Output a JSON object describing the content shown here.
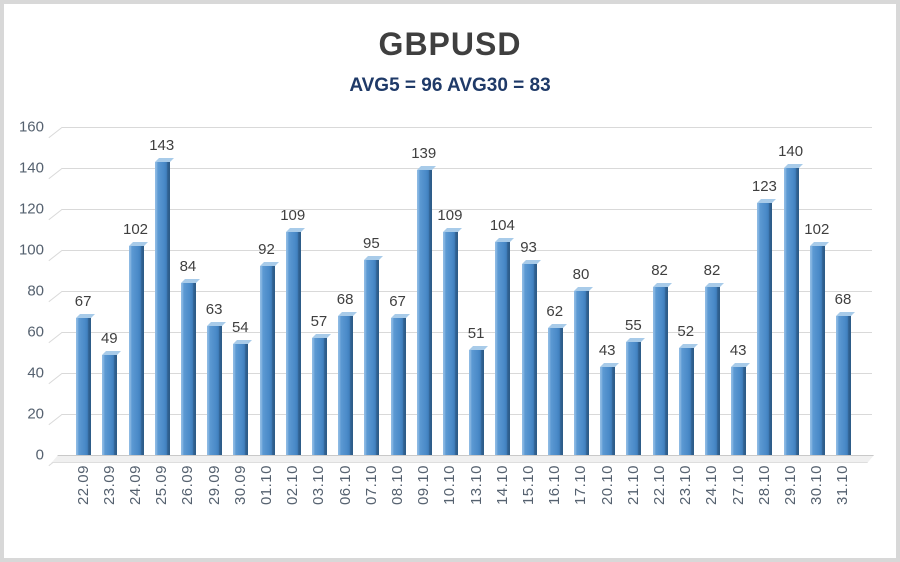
{
  "chart_data": {
    "type": "bar",
    "title": "GBPUSD",
    "subtitle": "AVG5 = 96 AVG30 = 83",
    "categories": [
      "22.09",
      "23.09",
      "24.09",
      "25.09",
      "26.09",
      "29.09",
      "30.09",
      "01.10",
      "02.10",
      "03.10",
      "06.10",
      "07.10",
      "08.10",
      "09.10",
      "10.10",
      "13.10",
      "14.10",
      "15.10",
      "16.10",
      "17.10",
      "20.10",
      "21.10",
      "22.10",
      "23.10",
      "24.10",
      "27.10",
      "28.10",
      "29.10",
      "30.10",
      "31.10"
    ],
    "values": [
      67,
      49,
      102,
      143,
      84,
      63,
      54,
      92,
      109,
      57,
      68,
      95,
      67,
      139,
      109,
      51,
      104,
      93,
      62,
      80,
      43,
      55,
      82,
      52,
      82,
      43,
      123,
      140,
      102,
      68
    ],
    "avg5": 96,
    "avg30": 83,
    "xlabel": "",
    "ylabel": "",
    "ylim": [
      0,
      160
    ],
    "yticks": [
      0,
      20,
      40,
      60,
      80,
      100,
      120,
      140,
      160
    ],
    "grid": true,
    "legend": false,
    "bar_labels": true,
    "style_3d": true,
    "colors": {
      "title": "#3f3f3f",
      "subtitle": "#1f3a68",
      "value_label": "#3f3f3f",
      "axis_label": "#55616f",
      "gridline": "#d9d9d9",
      "bar_light": "#8cb9e3",
      "bar_main": "#4a8ac8",
      "bar_dark": "#2d5c88",
      "bar_top": "#a8cbe9",
      "floor": "#f0f0f0",
      "frame": "#d8d8d8",
      "background": "#ffffff"
    }
  }
}
